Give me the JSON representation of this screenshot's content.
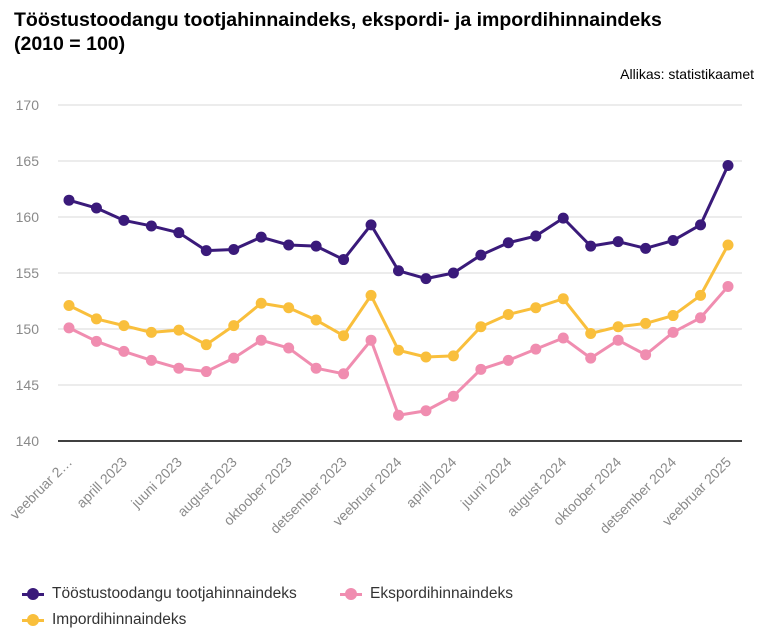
{
  "title_line1": "Tööstustoodangu tootjahinnaindeks, ekspordi- ja impordihinnaindeks",
  "title_line2": "(2010 = 100)",
  "source": "Allikas: statistikaamet",
  "chart_data": {
    "type": "line",
    "title": "Tööstustoodangu tootjahinnaindeks, ekspordi- ja impordihinnaindeks (2010 = 100)",
    "xlabel": "",
    "ylabel": "",
    "ylim": [
      140,
      170
    ],
    "yticks": [
      140,
      145,
      150,
      155,
      160,
      165,
      170
    ],
    "grid": true,
    "legend_position": "bottom",
    "categories": [
      "veebruar 2023",
      "märts 2023",
      "aprill 2023",
      "mai 2023",
      "juuni 2023",
      "juuli 2023",
      "august 2023",
      "september 2023",
      "oktoober 2023",
      "november 2023",
      "detsember 2023",
      "jaanuar 2024",
      "veebruar 2024",
      "märts 2024",
      "aprill 2024",
      "mai 2024",
      "juuni 2024",
      "juuli 2024",
      "august 2024",
      "september 2024",
      "oktoober 2024",
      "november 2024",
      "detsember 2024",
      "jaanuar 2025",
      "veebruar 2025"
    ],
    "tick_labels": [
      "veebruar 2…",
      "",
      "aprill 2023",
      "",
      "juuni 2023",
      "",
      "august 2023",
      "",
      "oktoober 2023",
      "",
      "detsember 2023",
      "",
      "veebruar 2024",
      "",
      "aprill 2024",
      "",
      "juuni 2024",
      "",
      "august 2024",
      "",
      "oktoober 2024",
      "",
      "detsember 2024",
      "",
      "veebruar 2025"
    ],
    "series": [
      {
        "name": "Tööstustoodangu tootjahinnaindeks",
        "color": "#3a1a7a",
        "values": [
          161.5,
          160.8,
          159.7,
          159.2,
          158.6,
          157.0,
          157.1,
          158.2,
          157.5,
          157.4,
          156.2,
          159.3,
          155.2,
          154.5,
          155.0,
          156.6,
          157.7,
          158.3,
          159.9,
          157.4,
          157.8,
          157.2,
          157.9,
          159.3,
          164.6
        ]
      },
      {
        "name": "Ekspordihinnaindeks",
        "color": "#f08db0",
        "values": [
          150.1,
          148.9,
          148.0,
          147.2,
          146.5,
          146.2,
          147.4,
          149.0,
          148.3,
          146.5,
          146.0,
          149.0,
          142.3,
          142.7,
          144.0,
          146.4,
          147.2,
          148.2,
          149.2,
          147.4,
          149.0,
          147.7,
          149.7,
          151.0,
          153.8
        ]
      },
      {
        "name": "Impordihinnaindeks",
        "color": "#f9bf3c",
        "values": [
          152.1,
          150.9,
          150.3,
          149.7,
          149.9,
          148.6,
          150.3,
          152.3,
          151.9,
          150.8,
          149.4,
          153.0,
          148.1,
          147.5,
          147.6,
          150.2,
          151.3,
          151.9,
          152.7,
          149.6,
          150.2,
          150.5,
          151.2,
          153.0,
          157.5
        ]
      }
    ]
  },
  "legend": [
    {
      "label": "Tööstustoodangu tootjahinnaindeks",
      "color": "#3a1a7a"
    },
    {
      "label": "Ekspordihinnaindeks",
      "color": "#f08db0"
    },
    {
      "label": "Impordihinnaindeks",
      "color": "#f9bf3c"
    }
  ]
}
